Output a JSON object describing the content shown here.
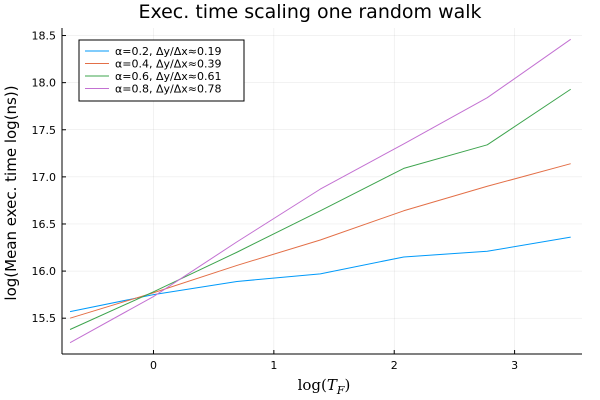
{
  "chart_data": {
    "type": "line",
    "title": "Exec. time scaling one random walk",
    "xlabel": "log(T_F)",
    "xlabel_parts": {
      "base": "log(",
      "var": "T",
      "sub": "F",
      "close": ")"
    },
    "ylabel": "log(Mean exec. time log(ns))",
    "xlim": [
      -0.76,
      3.56
    ],
    "ylim": [
      15.12,
      18.58
    ],
    "xticks": [
      0,
      1,
      2,
      3
    ],
    "xtick_labels": [
      "0",
      "1",
      "2",
      "3"
    ],
    "yticks": [
      15.5,
      16.0,
      16.5,
      17.0,
      17.5,
      18.0,
      18.5
    ],
    "ytick_labels": [
      "15.5",
      "16.0",
      "16.5",
      "17.0",
      "17.5",
      "18.0",
      "18.5"
    ],
    "grid": true,
    "legend_position": "top-left",
    "series": [
      {
        "name": "α=0.2, Δy/Δx≈0.19",
        "color": "#009AFA",
        "x": [
          -0.693,
          0.0,
          0.693,
          1.386,
          2.079,
          2.773,
          3.466
        ],
        "y": [
          15.57,
          15.75,
          15.89,
          15.97,
          16.15,
          16.21,
          16.36
        ]
      },
      {
        "name": "α=0.4, Δy/Δx≈0.39",
        "color": "#E36F47",
        "x": [
          -0.693,
          0.0,
          0.693,
          1.386,
          2.079,
          2.773,
          3.466
        ],
        "y": [
          15.5,
          15.77,
          16.06,
          16.33,
          16.64,
          16.9,
          17.14
        ]
      },
      {
        "name": "α=0.6, Δy/Δx≈0.61",
        "color": "#3EA44E",
        "x": [
          -0.693,
          0.0,
          0.693,
          1.386,
          2.079,
          2.773,
          3.466
        ],
        "y": [
          15.38,
          15.78,
          16.2,
          16.64,
          17.09,
          17.34,
          17.93
        ]
      },
      {
        "name": "α=0.8, Δy/Δx≈0.78",
        "color": "#C371D2",
        "x": [
          -0.693,
          0.0,
          0.693,
          1.386,
          2.079,
          2.773,
          3.466
        ],
        "y": [
          15.24,
          15.73,
          16.31,
          16.87,
          17.35,
          17.84,
          18.46
        ]
      }
    ]
  }
}
